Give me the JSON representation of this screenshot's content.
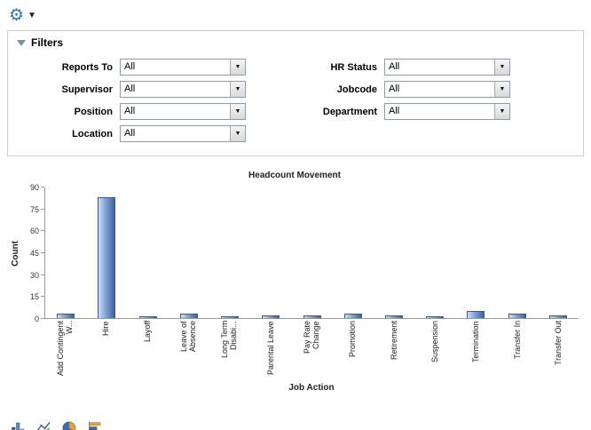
{
  "toolbar": {
    "gear_icon": "gear",
    "caret": "▼"
  },
  "filters": {
    "title": "Filters",
    "fields": [
      {
        "label": "Reports To",
        "value": "All"
      },
      {
        "label": "Supervisor",
        "value": "All"
      },
      {
        "label": "Position",
        "value": "All"
      },
      {
        "label": "Location",
        "value": "All"
      },
      {
        "label": "HR Status",
        "value": "All"
      },
      {
        "label": "Jobcode",
        "value": "All"
      },
      {
        "label": "Department",
        "value": "All"
      }
    ],
    "dropdown_arrow": "▼"
  },
  "chart_data": {
    "type": "bar",
    "title": "Headcount Movement",
    "xlabel": "Job Action",
    "ylabel": "Count",
    "ylim": [
      0,
      90
    ],
    "yticks": [
      0,
      15,
      30,
      45,
      60,
      75,
      90
    ],
    "categories": [
      "Add Contingent W...",
      "Hire",
      "Layoff",
      "Leave of Absence",
      "Long Term Disabi...",
      "Parental Leave",
      "Pay Rate Change",
      "Promotion",
      "Retirement",
      "Suspension",
      "Termination",
      "Transfer In",
      "Transfer Out"
    ],
    "values": [
      3,
      83,
      1,
      3,
      1,
      2,
      2,
      3,
      2,
      1,
      5,
      3,
      2
    ],
    "bar_color": "#5d87c0",
    "grid": false,
    "legend": false
  },
  "footer": {
    "icons": [
      "bar-chart",
      "line-chart",
      "pie-chart",
      "horizontal-bar-chart"
    ]
  }
}
